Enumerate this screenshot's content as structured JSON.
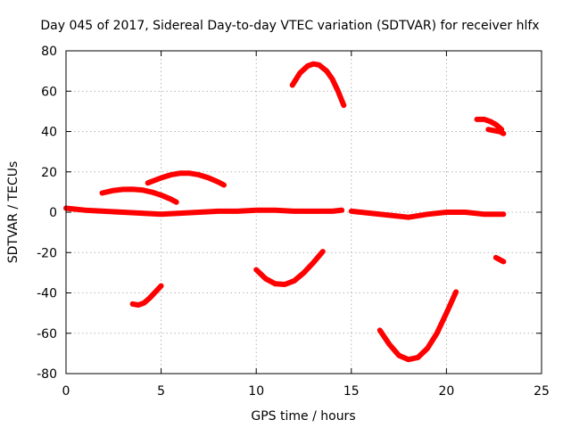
{
  "chart_data": {
    "type": "line",
    "title": "Day 045 of 2017, Sidereal Day-to-day VTEC variation (SDTVAR) for receiver hlfx",
    "xlabel": "GPS time / hours",
    "ylabel": "SDTVAR / TECUs",
    "xlim": [
      0,
      25
    ],
    "ylim": [
      -80,
      80
    ],
    "xticks": [
      0,
      5,
      10,
      15,
      20,
      25
    ],
    "yticks": [
      -80,
      -60,
      -40,
      -20,
      0,
      20,
      40,
      60,
      80
    ],
    "xtick_labels": [
      "0",
      "5",
      "10",
      "15",
      "20",
      "25"
    ],
    "ytick_labels": [
      "-80",
      "-60",
      "-40",
      "-20",
      "0",
      "20",
      "40",
      "60",
      "80"
    ],
    "grid": true,
    "legend": null,
    "color": "#ff0000",
    "series": [
      {
        "name": "near-zero band",
        "x": [
          0,
          0.5,
          1,
          2,
          3,
          4,
          5,
          6,
          7,
          8,
          9,
          10,
          11,
          12,
          13,
          14,
          14.5
        ],
        "y": [
          2,
          1.5,
          1,
          0.5,
          0,
          -0.5,
          -1,
          -0.5,
          0,
          0.5,
          0.5,
          1,
          1,
          0.5,
          0.5,
          0.5,
          1
        ]
      },
      {
        "name": "near-zero band 2",
        "x": [
          15,
          16,
          17,
          18,
          19,
          20,
          21,
          22,
          23
        ],
        "y": [
          0.5,
          -0.5,
          -1.5,
          -2.5,
          -1,
          0,
          0,
          -1,
          -1
        ]
      },
      {
        "name": "arc 2-6h",
        "x": [
          1.9,
          2.5,
          3,
          3.5,
          4,
          4.5,
          5,
          5.5,
          5.8
        ],
        "y": [
          9.5,
          10.8,
          11.3,
          11.4,
          11,
          10,
          8.5,
          6.5,
          5
        ]
      },
      {
        "name": "arc 4-8h",
        "x": [
          4.3,
          5,
          5.5,
          6,
          6.5,
          7,
          7.5,
          8,
          8.3
        ],
        "y": [
          14.5,
          17,
          18.5,
          19.3,
          19.3,
          18.5,
          17,
          15,
          13.5
        ]
      },
      {
        "name": "arc 12-15h",
        "x": [
          11.9,
          12.3,
          12.7,
          13,
          13.3,
          13.7,
          14,
          14.3,
          14.6
        ],
        "y": [
          63,
          69,
          72.5,
          73.5,
          73,
          70,
          66,
          60,
          53
        ]
      },
      {
        "name": "arc 21-23h a",
        "x": [
          21.6,
          22,
          22.3,
          22.6,
          22.9
        ],
        "y": [
          46,
          46,
          45,
          43.5,
          41
        ]
      },
      {
        "name": "arc 21-23h b",
        "x": [
          22.2,
          22.5,
          22.8,
          23
        ],
        "y": [
          41,
          40.5,
          40,
          39
        ]
      },
      {
        "name": "arc 3.5-5h",
        "x": [
          3.5,
          3.8,
          4.1,
          4.4,
          4.7,
          5.0
        ],
        "y": [
          -45.5,
          -46,
          -45,
          -42.5,
          -39.5,
          -36.5
        ]
      },
      {
        "name": "arc 10-13.5h",
        "x": [
          10,
          10.5,
          11,
          11.5,
          12,
          12.5,
          13,
          13.5
        ],
        "y": [
          -28.5,
          -33,
          -35.5,
          -35.8,
          -34,
          -30,
          -25,
          -19.5
        ]
      },
      {
        "name": "arc 16.5-20.5h",
        "x": [
          16.5,
          17,
          17.5,
          18,
          18.5,
          19,
          19.5,
          20,
          20.5
        ],
        "y": [
          -58.5,
          -65.5,
          -71,
          -73,
          -72,
          -67.5,
          -60,
          -50,
          -39.5
        ]
      },
      {
        "name": "short 22.8h",
        "x": [
          22.6,
          22.8,
          23
        ],
        "y": [
          -22.5,
          -23.5,
          -24.5
        ]
      }
    ]
  }
}
